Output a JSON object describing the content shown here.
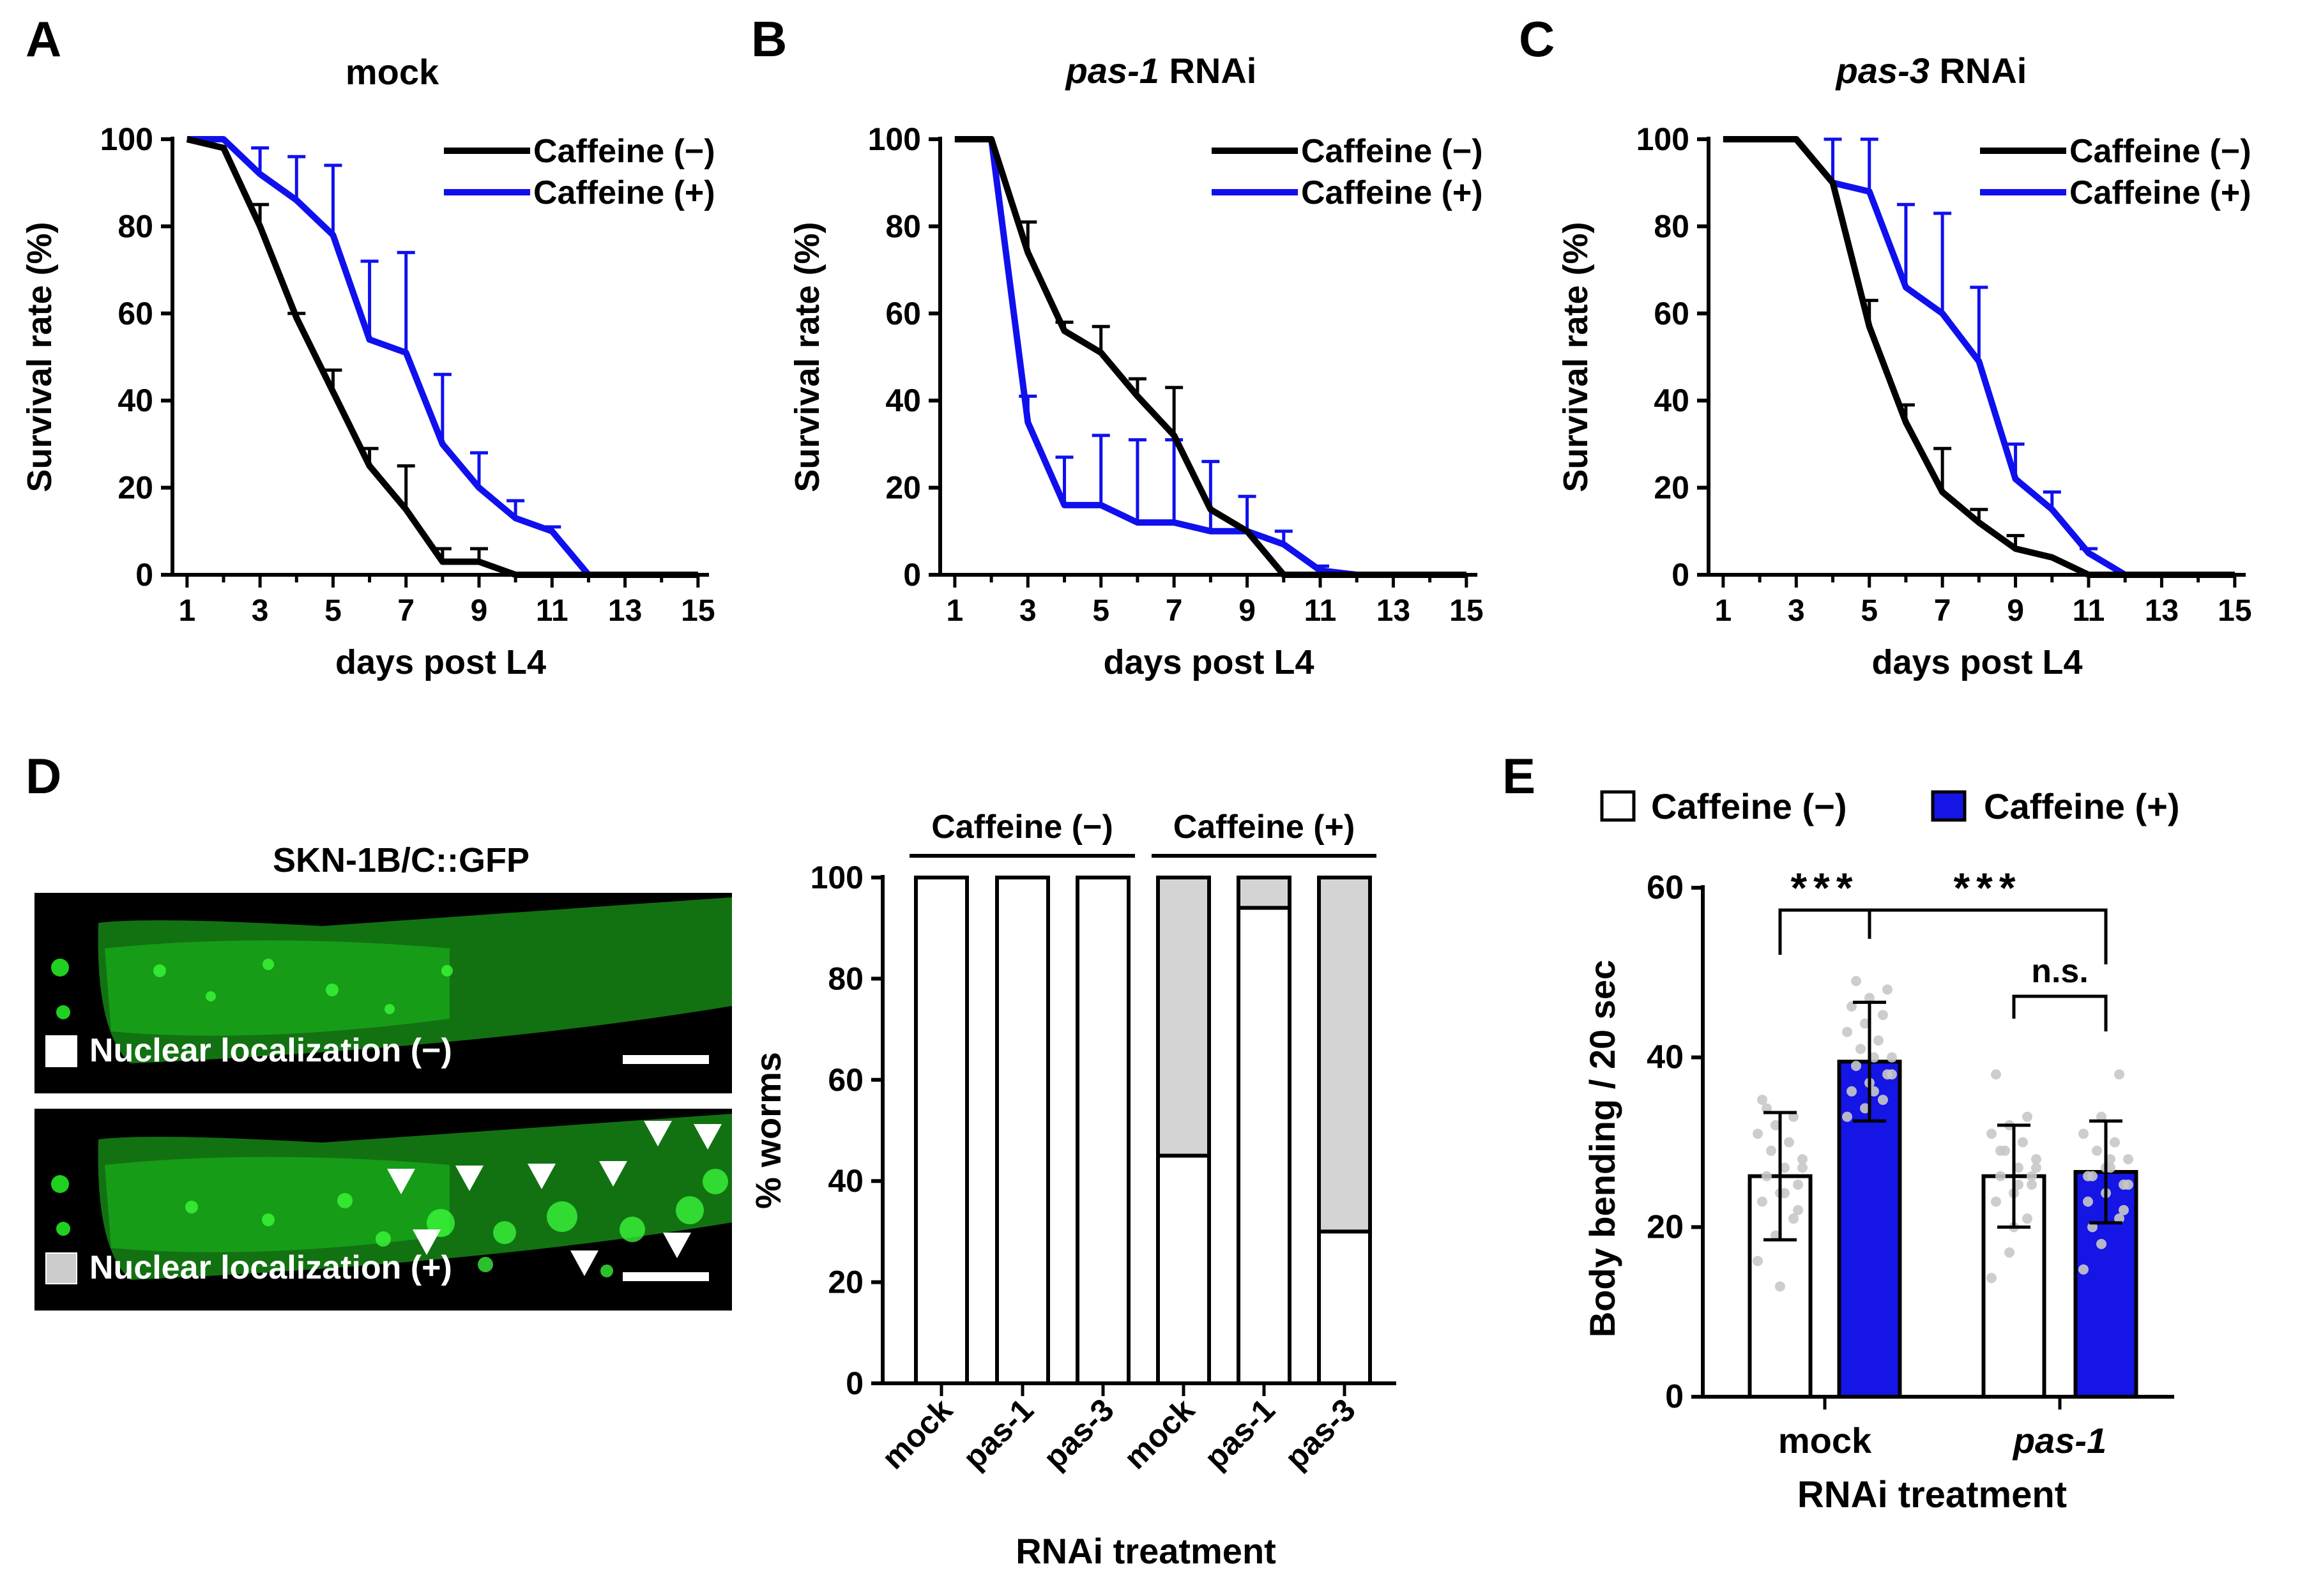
{
  "panels": {
    "A": {
      "letter": "A",
      "title": "mock"
    },
    "B": {
      "letter": "B",
      "title_italic": "pas-1",
      "title_rest": " RNAi"
    },
    "C": {
      "letter": "C",
      "title_italic": "pas-3",
      "title_rest": " RNAi"
    },
    "D": {
      "letter": "D"
    },
    "E": {
      "letter": "E"
    }
  },
  "micrograph": {
    "title": "SKN-1B/C::GFP",
    "top_label": "Nuclear localization (−)",
    "bottom_label": "Nuclear localization (+)",
    "green": "#20d020",
    "legend_gray": "#cccccc"
  },
  "colors": {
    "black": "#000000",
    "blue": "#1010ee",
    "bar_blue": "#1515e6",
    "gray_fill": "#d4d4d4",
    "dot_gray": "#c8c8c8"
  },
  "chart_data": [
    {
      "id": "A",
      "type": "line",
      "title": "mock",
      "xlabel": "days post L4",
      "ylabel": "Survival rate (%)",
      "xlim": [
        0.6,
        15.3
      ],
      "ylim": [
        0,
        100
      ],
      "xticks": [
        "1",
        "3",
        "5",
        "7",
        "9",
        "11",
        "13",
        "15"
      ],
      "xtick_values": [
        1,
        3,
        5,
        7,
        9,
        11,
        13,
        15
      ],
      "yticks": [
        "0",
        "20",
        "40",
        "60",
        "80",
        "100"
      ],
      "ytick_values": [
        0,
        20,
        40,
        60,
        80,
        100
      ],
      "legend_position": "top-right",
      "series": [
        {
          "name": "Caffeine (−)",
          "color": "#000000",
          "x": [
            1,
            2,
            3,
            4,
            5,
            6,
            7,
            8,
            9,
            10,
            11,
            12,
            13,
            14,
            15
          ],
          "y": [
            100,
            98,
            80,
            59,
            42,
            25,
            15,
            3,
            3,
            0,
            0,
            0,
            0,
            0,
            0
          ],
          "err": [
            0,
            0,
            5,
            1,
            5,
            4,
            10,
            3,
            3,
            0,
            0,
            0,
            0,
            0,
            0
          ]
        },
        {
          "name": "Caffeine (+)",
          "color": "#1010ee",
          "x": [
            1,
            2,
            3,
            4,
            5,
            6,
            7,
            8,
            9,
            10,
            11,
            12,
            13,
            14,
            15
          ],
          "y": [
            100,
            100,
            92,
            86,
            78,
            54,
            51,
            30,
            20,
            13,
            10,
            0,
            0,
            0,
            0
          ],
          "err": [
            0,
            0,
            6,
            10,
            16,
            18,
            23,
            16,
            8,
            4,
            1,
            0,
            0,
            0,
            0
          ]
        }
      ]
    },
    {
      "id": "B",
      "type": "line",
      "title": "pas-1 RNAi",
      "xlabel": "days post L4",
      "ylabel": "Survival rate (%)",
      "xlim": [
        0.6,
        15.3
      ],
      "ylim": [
        0,
        100
      ],
      "xticks": [
        "1",
        "3",
        "5",
        "7",
        "9",
        "11",
        "13",
        "15"
      ],
      "xtick_values": [
        1,
        3,
        5,
        7,
        9,
        11,
        13,
        15
      ],
      "yticks": [
        "0",
        "20",
        "40",
        "60",
        "80",
        "100"
      ],
      "ytick_values": [
        0,
        20,
        40,
        60,
        80,
        100
      ],
      "legend_position": "top-right",
      "series": [
        {
          "name": "Caffeine (−)",
          "color": "#000000",
          "x": [
            1,
            2,
            3,
            4,
            5,
            6,
            7,
            8,
            9,
            10,
            11,
            12,
            13,
            14,
            15
          ],
          "y": [
            100,
            100,
            74,
            56,
            51,
            41,
            32,
            15,
            10,
            0,
            0,
            0,
            0,
            0,
            0
          ],
          "err": [
            0,
            0,
            7,
            2,
            6,
            4,
            11,
            0,
            0,
            0,
            0,
            0,
            0,
            0,
            0
          ]
        },
        {
          "name": "Caffeine (+)",
          "color": "#1010ee",
          "x": [
            1,
            2,
            3,
            4,
            5,
            6,
            7,
            8,
            9,
            10,
            11,
            12,
            13,
            14,
            15
          ],
          "y": [
            100,
            100,
            35,
            16,
            16,
            12,
            12,
            10,
            10,
            7,
            1,
            0,
            0,
            0,
            0
          ],
          "err": [
            0,
            0,
            6,
            11,
            16,
            19,
            19,
            16,
            8,
            3,
            1,
            0,
            0,
            0,
            0
          ]
        }
      ]
    },
    {
      "id": "C",
      "type": "line",
      "title": "pas-3 RNAi",
      "xlabel": "days post L4",
      "ylabel": "Survival rate (%)",
      "xlim": [
        0.6,
        15.3
      ],
      "ylim": [
        0,
        100
      ],
      "xticks": [
        "1",
        "3",
        "5",
        "7",
        "9",
        "11",
        "13",
        "15"
      ],
      "xtick_values": [
        1,
        3,
        5,
        7,
        9,
        11,
        13,
        15
      ],
      "yticks": [
        "0",
        "20",
        "40",
        "60",
        "80",
        "100"
      ],
      "ytick_values": [
        0,
        20,
        40,
        60,
        80,
        100
      ],
      "legend_position": "top-right",
      "series": [
        {
          "name": "Caffeine (−)",
          "color": "#000000",
          "x": [
            1,
            2,
            3,
            4,
            5,
            6,
            7,
            8,
            9,
            10,
            11,
            12,
            13,
            14,
            15
          ],
          "y": [
            100,
            100,
            100,
            90,
            57,
            35,
            19,
            12,
            6,
            4,
            0,
            0,
            0,
            0,
            0
          ],
          "err": [
            0,
            0,
            0,
            0,
            6,
            4,
            10,
            3,
            3,
            0,
            0,
            0,
            0,
            0,
            0
          ]
        },
        {
          "name": "Caffeine (+)",
          "color": "#1010ee",
          "x": [
            1,
            2,
            3,
            4,
            5,
            6,
            7,
            8,
            9,
            10,
            11,
            12,
            13,
            14,
            15
          ],
          "y": [
            100,
            100,
            100,
            90,
            88,
            66,
            60,
            49,
            22,
            15,
            5,
            0,
            0,
            0,
            0
          ],
          "err": [
            0,
            0,
            0,
            10,
            12,
            19,
            23,
            17,
            8,
            4,
            1,
            0,
            0,
            0,
            0
          ]
        }
      ]
    },
    {
      "id": "D",
      "type": "bar",
      "stacked": true,
      "ylabel": "% worms",
      "xlabel": "RNAi treatment",
      "ylim": [
        0,
        100
      ],
      "yticks": [
        "0",
        "20",
        "40",
        "60",
        "80",
        "100"
      ],
      "ytick_values": [
        0,
        20,
        40,
        60,
        80,
        100
      ],
      "categories": [
        "mock",
        "pas-1",
        "pas-3",
        "mock",
        "pas-1",
        "pas-3"
      ],
      "group_labels": [
        "Caffeine (−)",
        "Caffeine (+)"
      ],
      "series": [
        {
          "name": "Nuclear localization (−)",
          "color": "#ffffff",
          "values": [
            100,
            100,
            100,
            45,
            94,
            30
          ]
        },
        {
          "name": "Nuclear localization (+)",
          "color": "#d4d4d4",
          "values": [
            0,
            0,
            0,
            55,
            6,
            70
          ]
        }
      ]
    },
    {
      "id": "E",
      "type": "bar",
      "ylabel": "Body bending / 20 sec",
      "xlabel": "RNAi treatment",
      "ylim": [
        0,
        60
      ],
      "yticks": [
        "0",
        "20",
        "40",
        "60"
      ],
      "ytick_values": [
        0,
        20,
        40,
        60
      ],
      "categories": [
        "mock",
        "pas-1"
      ],
      "legend_position": "top",
      "series": [
        {
          "name": "Caffeine (−)",
          "color": "#ffffff",
          "values": [
            26,
            26
          ],
          "sd": [
            7.5,
            6
          ]
        },
        {
          "name": "Caffeine (+)",
          "color": "#1515e6",
          "values": [
            39.5,
            26.5
          ],
          "sd": [
            7,
            6
          ]
        }
      ],
      "points": [
        [
          16,
          19,
          21,
          23,
          24,
          25,
          26,
          27,
          28,
          29,
          30,
          31,
          32,
          33,
          35,
          13,
          22,
          34,
          24,
          27
        ],
        [
          33,
          34,
          35,
          36,
          37,
          38,
          39,
          40,
          40,
          41,
          42,
          43,
          44,
          45,
          46,
          47,
          48,
          49,
          36,
          38
        ],
        [
          14,
          17,
          21,
          23,
          24,
          25,
          26,
          27,
          28,
          29,
          30,
          31,
          32,
          33,
          38,
          20,
          26,
          29,
          25,
          27
        ],
        [
          15,
          18,
          21,
          23,
          24,
          25,
          26,
          27,
          28,
          29,
          30,
          31,
          33,
          38,
          26,
          27,
          22,
          20,
          28,
          25
        ]
      ],
      "comparisons": [
        {
          "label": "***",
          "from": "mock Caffeine (−)",
          "to": "mock Caffeine (+)"
        },
        {
          "label": "***",
          "from": "mock Caffeine (+)",
          "to": "pas-1 Caffeine (+)"
        },
        {
          "label": "n.s.",
          "from": "pas-1 Caffeine (−)",
          "to": "pas-1 Caffeine (+)"
        }
      ]
    }
  ]
}
